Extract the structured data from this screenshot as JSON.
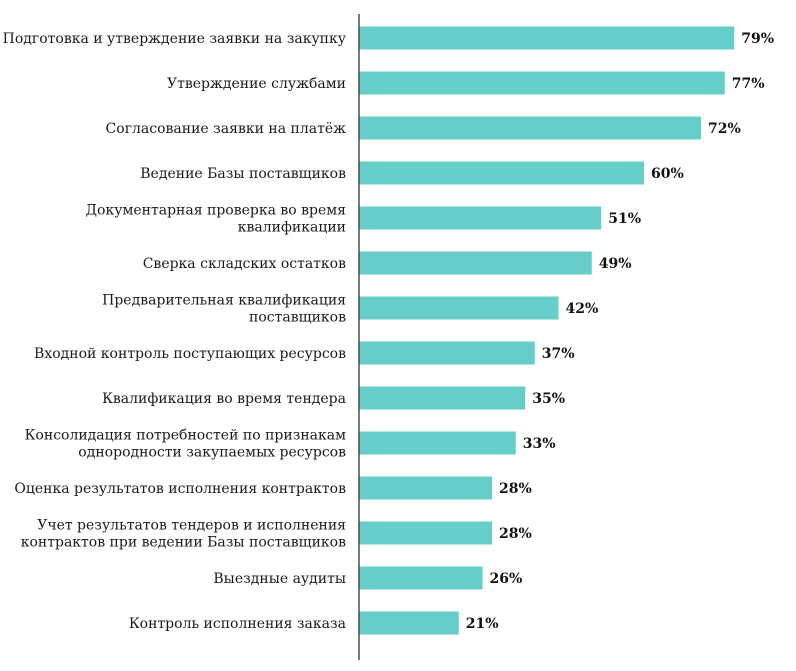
{
  "chart_data": {
    "type": "bar",
    "orientation": "horizontal",
    "title": "",
    "xlabel": "",
    "ylabel": "",
    "value_suffix": "%",
    "categories": [
      [
        "Подготовка и утверждение заявки на закупку"
      ],
      [
        "Утверждение службами"
      ],
      [
        "Согласование заявки на платёж"
      ],
      [
        "Ведение Базы поставщиков"
      ],
      [
        "Документарная проверка во время",
        "квалификации"
      ],
      [
        "Сверка складских остатков"
      ],
      [
        "Предварительная квалификация",
        "поставщиков"
      ],
      [
        "Входной контроль поступающих ресурсов"
      ],
      [
        "Квалификация во время тендера"
      ],
      [
        "Консолидация потребностей по признакам",
        "однородности закупаемых ресурсов"
      ],
      [
        "Оценка результатов исполнения контрактов"
      ],
      [
        "Учет результатов тендеров и исполнения",
        "контрактов при ведении Базы поставщиков"
      ],
      [
        "Выездные аудиты"
      ],
      [
        "Контроль исполнения заказа"
      ]
    ],
    "values": [
      79,
      77,
      72,
      60,
      51,
      49,
      42,
      37,
      35,
      33,
      28,
      28,
      26,
      21
    ],
    "xlim": [
      0,
      100
    ],
    "bar_color": "#66cdc9",
    "axis_color": "#333333",
    "grid": false,
    "legend": "none"
  }
}
